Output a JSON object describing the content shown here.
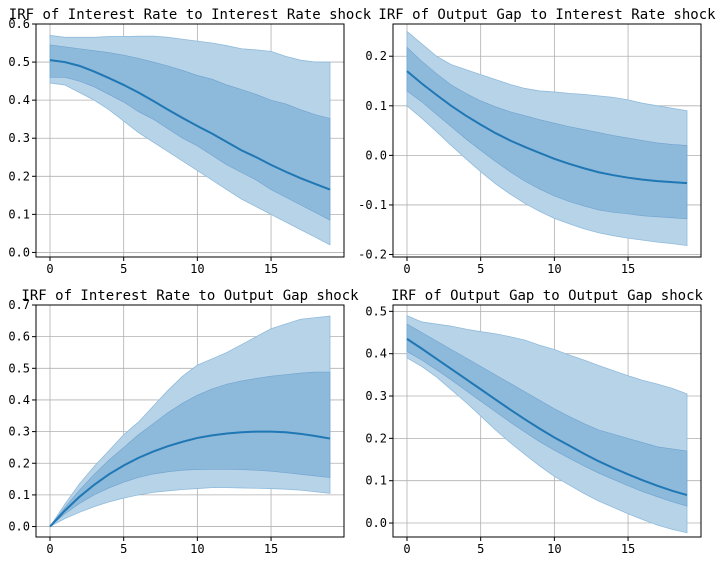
{
  "chart_data": [
    {
      "type": "line",
      "title": "IRF of Interest Rate to Interest Rate shock",
      "xlabel": "",
      "ylabel": "",
      "x": [
        0,
        1,
        2,
        3,
        4,
        5,
        6,
        7,
        8,
        9,
        10,
        11,
        12,
        13,
        14,
        15,
        16,
        17,
        18,
        19
      ],
      "series": [
        {
          "band": "outer",
          "lower": [
            0.445,
            0.44,
            0.42,
            0.4,
            0.375,
            0.345,
            0.315,
            0.29,
            0.265,
            0.24,
            0.215,
            0.19,
            0.165,
            0.14,
            0.12,
            0.1,
            0.08,
            0.06,
            0.04,
            0.02
          ],
          "upper": [
            0.57,
            0.565,
            0.565,
            0.565,
            0.567,
            0.567,
            0.568,
            0.568,
            0.565,
            0.56,
            0.555,
            0.55,
            0.543,
            0.535,
            0.532,
            0.528,
            0.515,
            0.505,
            0.5,
            0.5
          ]
        },
        {
          "band": "inner",
          "lower": [
            0.46,
            0.46,
            0.45,
            0.435,
            0.415,
            0.395,
            0.37,
            0.35,
            0.325,
            0.3,
            0.28,
            0.255,
            0.23,
            0.21,
            0.19,
            0.165,
            0.145,
            0.125,
            0.105,
            0.085
          ],
          "upper": [
            0.545,
            0.54,
            0.535,
            0.53,
            0.525,
            0.518,
            0.51,
            0.5,
            0.49,
            0.478,
            0.465,
            0.455,
            0.44,
            0.428,
            0.415,
            0.4,
            0.39,
            0.375,
            0.362,
            0.352
          ]
        },
        {
          "band": "median",
          "values": [
            0.505,
            0.5,
            0.49,
            0.475,
            0.458,
            0.44,
            0.42,
            0.398,
            0.375,
            0.353,
            0.332,
            0.312,
            0.29,
            0.268,
            0.25,
            0.23,
            0.212,
            0.195,
            0.18,
            0.165
          ]
        }
      ],
      "xticks": [
        "0",
        "5",
        "10",
        "15"
      ],
      "yticks": [
        "0.0",
        "0.1",
        "0.2",
        "0.3",
        "0.4",
        "0.5",
        "0.6"
      ],
      "xlim": [
        -0.95,
        19.95
      ],
      "ylim": [
        -0.012,
        0.6
      ],
      "grid": true
    },
    {
      "type": "line",
      "title": "IRF of Output Gap to Interest Rate shock",
      "xlabel": "",
      "ylabel": "",
      "x": [
        0,
        1,
        2,
        3,
        4,
        5,
        6,
        7,
        8,
        9,
        10,
        11,
        12,
        13,
        14,
        15,
        16,
        17,
        18,
        19
      ],
      "series": [
        {
          "band": "outer",
          "lower": [
            0.1,
            0.075,
            0.048,
            0.02,
            -0.007,
            -0.033,
            -0.057,
            -0.078,
            -0.097,
            -0.113,
            -0.127,
            -0.138,
            -0.148,
            -0.156,
            -0.162,
            -0.167,
            -0.171,
            -0.175,
            -0.178,
            -0.182
          ],
          "upper": [
            0.25,
            0.225,
            0.2,
            0.183,
            0.173,
            0.163,
            0.153,
            0.143,
            0.135,
            0.13,
            0.128,
            0.125,
            0.123,
            0.12,
            0.117,
            0.112,
            0.105,
            0.1,
            0.095,
            0.09
          ]
        },
        {
          "band": "inner",
          "lower": [
            0.13,
            0.108,
            0.083,
            0.058,
            0.033,
            0.01,
            -0.012,
            -0.033,
            -0.052,
            -0.068,
            -0.082,
            -0.093,
            -0.102,
            -0.11,
            -0.115,
            -0.118,
            -0.122,
            -0.124,
            -0.126,
            -0.128
          ],
          "upper": [
            0.218,
            0.19,
            0.165,
            0.142,
            0.125,
            0.11,
            0.098,
            0.088,
            0.08,
            0.072,
            0.065,
            0.058,
            0.052,
            0.046,
            0.04,
            0.035,
            0.03,
            0.025,
            0.022,
            0.02
          ]
        },
        {
          "band": "median",
          "values": [
            0.17,
            0.145,
            0.122,
            0.1,
            0.08,
            0.062,
            0.045,
            0.03,
            0.017,
            0.005,
            -0.007,
            -0.017,
            -0.026,
            -0.034,
            -0.04,
            -0.045,
            -0.049,
            -0.052,
            -0.054,
            -0.056
          ]
        }
      ],
      "xticks": [
        "0",
        "5",
        "10",
        "15"
      ],
      "yticks": [
        "-0.2",
        "-0.1",
        "0.0",
        "0.1",
        "0.2"
      ],
      "xlim": [
        -0.95,
        19.95
      ],
      "ylim": [
        -0.205,
        0.265
      ],
      "grid": true
    },
    {
      "type": "line",
      "title": "IRF of Interest Rate to Output Gap shock",
      "xlabel": "",
      "ylabel": "",
      "x": [
        0,
        1,
        2,
        3,
        4,
        5,
        6,
        7,
        8,
        9,
        10,
        11,
        12,
        13,
        14,
        15,
        16,
        17,
        18,
        19
      ],
      "series": [
        {
          "band": "outer",
          "lower": [
            0.0,
            0.025,
            0.045,
            0.063,
            0.078,
            0.09,
            0.1,
            0.108,
            0.113,
            0.117,
            0.12,
            0.123,
            0.123,
            0.122,
            0.121,
            0.12,
            0.118,
            0.115,
            0.11,
            0.105
          ],
          "upper": [
            0.0,
            0.07,
            0.135,
            0.19,
            0.24,
            0.29,
            0.33,
            0.38,
            0.43,
            0.475,
            0.51,
            0.53,
            0.55,
            0.575,
            0.6,
            0.625,
            0.64,
            0.655,
            0.66,
            0.665
          ]
        },
        {
          "band": "inner",
          "lower": [
            0.0,
            0.04,
            0.073,
            0.1,
            0.122,
            0.14,
            0.155,
            0.166,
            0.173,
            0.178,
            0.18,
            0.181,
            0.181,
            0.18,
            0.178,
            0.175,
            0.17,
            0.165,
            0.16,
            0.155
          ]
        },
        {
          "band": "inner2",
          "upper": [
            0.0,
            0.06,
            0.115,
            0.165,
            0.21,
            0.25,
            0.29,
            0.325,
            0.36,
            0.39,
            0.415,
            0.435,
            0.45,
            0.46,
            0.468,
            0.475,
            0.48,
            0.485,
            0.488,
            0.488
          ]
        },
        {
          "band": "median",
          "values": [
            0.0,
            0.05,
            0.094,
            0.132,
            0.165,
            0.193,
            0.217,
            0.237,
            0.254,
            0.268,
            0.28,
            0.288,
            0.294,
            0.298,
            0.3,
            0.3,
            0.298,
            0.293,
            0.286,
            0.278
          ]
        }
      ],
      "xticks": [
        "0",
        "5",
        "10",
        "15"
      ],
      "yticks": [
        "0.0",
        "0.1",
        "0.2",
        "0.3",
        "0.4",
        "0.5",
        "0.6",
        "0.7"
      ],
      "xlim": [
        -0.95,
        19.95
      ],
      "ylim": [
        -0.033,
        0.7
      ],
      "grid": true
    },
    {
      "type": "line",
      "title": "IRF of Output Gap to Output Gap shock",
      "xlabel": "",
      "ylabel": "",
      "x": [
        0,
        1,
        2,
        3,
        4,
        5,
        6,
        7,
        8,
        9,
        10,
        11,
        12,
        13,
        14,
        15,
        16,
        17,
        18,
        19
      ],
      "series": [
        {
          "band": "outer",
          "lower": [
            0.39,
            0.37,
            0.345,
            0.315,
            0.285,
            0.253,
            0.22,
            0.19,
            0.162,
            0.135,
            0.11,
            0.09,
            0.07,
            0.052,
            0.037,
            0.022,
            0.008,
            -0.005,
            -0.015,
            -0.023
          ],
          "upper": [
            0.49,
            0.475,
            0.47,
            0.465,
            0.458,
            0.452,
            0.447,
            0.44,
            0.432,
            0.42,
            0.41,
            0.397,
            0.385,
            0.372,
            0.36,
            0.348,
            0.337,
            0.328,
            0.318,
            0.305
          ]
        },
        {
          "band": "inner",
          "lower": [
            0.405,
            0.385,
            0.362,
            0.338,
            0.313,
            0.288,
            0.263,
            0.238,
            0.215,
            0.192,
            0.172,
            0.153,
            0.135,
            0.118,
            0.103,
            0.088,
            0.074,
            0.062,
            0.05,
            0.04
          ],
          "upper": [
            0.47,
            0.45,
            0.43,
            0.41,
            0.39,
            0.37,
            0.35,
            0.33,
            0.31,
            0.29,
            0.27,
            0.252,
            0.235,
            0.22,
            0.21,
            0.2,
            0.19,
            0.18,
            0.175,
            0.17
          ]
        },
        {
          "band": "median",
          "values": [
            0.435,
            0.412,
            0.388,
            0.364,
            0.34,
            0.316,
            0.292,
            0.268,
            0.245,
            0.223,
            0.202,
            0.183,
            0.164,
            0.146,
            0.13,
            0.115,
            0.101,
            0.088,
            0.076,
            0.066
          ]
        }
      ],
      "xticks": [
        "0",
        "5",
        "10",
        "15"
      ],
      "yticks": [
        "0.0",
        "0.1",
        "0.2",
        "0.3",
        "0.4",
        "0.5"
      ],
      "xlim": [
        -0.95,
        19.95
      ],
      "ylim": [
        -0.033,
        0.515
      ],
      "grid": true
    }
  ],
  "colors": {
    "outer_band": "#b7d3e8",
    "inner_band": "#86b4d8",
    "median": "#1f77b4",
    "grid": "#b0b0b0",
    "axes": "#000000"
  }
}
